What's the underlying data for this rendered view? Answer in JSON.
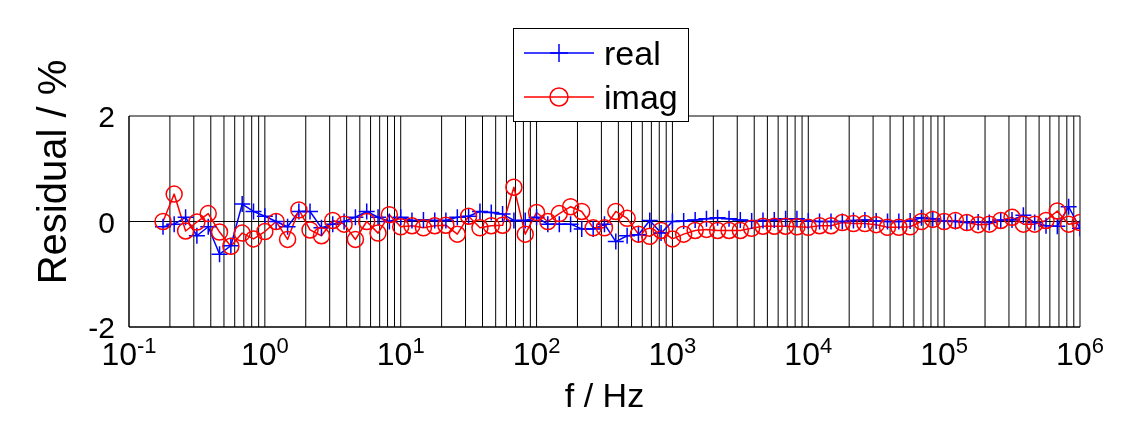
{
  "chart_data": {
    "type": "line",
    "xlabel": "f / Hz",
    "ylabel": "Residual / %",
    "x": [
      0.178,
      0.215,
      0.261,
      0.316,
      0.383,
      0.464,
      0.562,
      0.681,
      0.825,
      1,
      1.21,
      1.47,
      1.78,
      2.15,
      2.61,
      3.16,
      3.83,
      4.64,
      5.62,
      6.81,
      8.25,
      10,
      12.1,
      14.7,
      17.8,
      21.5,
      26.1,
      31.6,
      38.3,
      46.4,
      56.2,
      68.1,
      82.5,
      100,
      121,
      147,
      178,
      215,
      261,
      316,
      383,
      464,
      562,
      681,
      825,
      1000,
      1210,
      1470,
      1780,
      2150,
      2610,
      3160,
      3830,
      4640,
      5620,
      6810,
      8250,
      10000,
      12100,
      14700,
      17800,
      21500,
      26100,
      31600,
      38300,
      46400,
      56200,
      68100,
      82500,
      100000,
      121000,
      147000,
      178000,
      215000,
      261000,
      316000,
      383000,
      464000,
      562000,
      681000,
      825000,
      1000000
    ],
    "series": [
      {
        "name": "real",
        "color": "#0000ff",
        "marker": "cross",
        "values": [
          -0.1,
          -0.05,
          0.08,
          -0.27,
          -0.1,
          -0.62,
          -0.46,
          0.33,
          0.19,
          0.1,
          0,
          -0.1,
          0.19,
          0.19,
          -0.12,
          -0.05,
          0,
          0.08,
          0.19,
          0.08,
          0,
          0.08,
          0.02,
          0.03,
          0.02,
          0.02,
          0.08,
          0.1,
          0.19,
          0.17,
          0.14,
          0.02,
          0.02,
          0.08,
          -0.05,
          -0.05,
          -0.05,
          -0.14,
          -0.14,
          -0.05,
          -0.38,
          -0.27,
          -0.25,
          0.02,
          -0.22,
          0,
          0.01,
          0.03,
          0.05,
          0.07,
          0.05,
          0.03,
          0.01,
          0.02,
          0.03,
          0.05,
          0.05,
          0.01,
          0,
          0,
          0,
          0.02,
          0.03,
          0.01,
          0,
          0,
          0.01,
          0.07,
          0.05,
          0.01,
          0,
          -0.02,
          -0.01,
          -0.02,
          0.03,
          0.03,
          0.12,
          -0.02,
          -0.08,
          -0.09,
          0.28,
          -0.13
        ]
      },
      {
        "name": "imag",
        "color": "#ff0000",
        "marker": "circle",
        "values": [
          0,
          0.52,
          -0.18,
          -0.01,
          0.15,
          -0.2,
          -0.47,
          -0.22,
          -0.33,
          -0.19,
          0,
          -0.34,
          0.22,
          -0.16,
          -0.27,
          0.02,
          -0.05,
          -0.34,
          0,
          -0.22,
          0.13,
          -0.1,
          -0.08,
          -0.12,
          -0.08,
          -0.07,
          -0.24,
          0.1,
          -0.12,
          -0.08,
          -0.07,
          0.65,
          -0.24,
          0.17,
          0,
          0.15,
          0.28,
          0.19,
          -0.12,
          -0.12,
          0.19,
          0.06,
          -0.24,
          -0.28,
          -0.17,
          -0.33,
          -0.24,
          -0.17,
          -0.15,
          -0.17,
          -0.17,
          -0.17,
          -0.13,
          -0.09,
          -0.09,
          -0.09,
          -0.1,
          -0.11,
          -0.08,
          -0.08,
          -0.02,
          -0.04,
          -0.04,
          -0.06,
          -0.11,
          -0.11,
          -0.1,
          0,
          0.04,
          0,
          0.02,
          -0.02,
          -0.06,
          -0.05,
          0.02,
          0.08,
          -0.05,
          -0.05,
          0.02,
          0.2,
          -0.05,
          -0.02
        ]
      }
    ],
    "log": "x",
    "xlim": [
      0.1,
      1000000
    ],
    "xticks": [
      {
        "value": 0.1,
        "label": "10$^{-1}$"
      },
      {
        "value": 0.2,
        "label": null
      },
      {
        "value": 0.3,
        "label": null
      },
      {
        "value": 0.4,
        "label": null
      },
      {
        "value": 0.5,
        "label": null
      },
      {
        "value": 0.6,
        "label": null
      },
      {
        "value": 0.7,
        "label": null
      },
      {
        "value": 0.8,
        "label": null
      },
      {
        "value": 0.9,
        "label": null
      },
      {
        "value": 1,
        "label": "10$^{0}$"
      },
      {
        "value": 2,
        "label": null
      },
      {
        "value": 3,
        "label": null
      },
      {
        "value": 4,
        "label": null
      },
      {
        "value": 5,
        "label": null
      },
      {
        "value": 6,
        "label": null
      },
      {
        "value": 7,
        "label": null
      },
      {
        "value": 8,
        "label": null
      },
      {
        "value": 9,
        "label": null
      },
      {
        "value": 10,
        "label": "10$^{1}$"
      },
      {
        "value": 20,
        "label": null
      },
      {
        "value": 30,
        "label": null
      },
      {
        "value": 40,
        "label": null
      },
      {
        "value": 50,
        "label": null
      },
      {
        "value": 60,
        "label": null
      },
      {
        "value": 70,
        "label": null
      },
      {
        "value": 80,
        "label": null
      },
      {
        "value": 90,
        "label": null
      },
      {
        "value": 100,
        "label": "10$^{2}$"
      },
      {
        "value": 200,
        "label": null
      },
      {
        "value": 300,
        "label": null
      },
      {
        "value": 400,
        "label": null
      },
      {
        "value": 500,
        "label": null
      },
      {
        "value": 600,
        "label": null
      },
      {
        "value": 700,
        "label": null
      },
      {
        "value": 800,
        "label": null
      },
      {
        "value": 900,
        "label": null
      },
      {
        "value": 1000,
        "label": "10$^{3}$"
      },
      {
        "value": 2000,
        "label": null
      },
      {
        "value": 3000,
        "label": null
      },
      {
        "value": 4000,
        "label": null
      },
      {
        "value": 5000,
        "label": null
      },
      {
        "value": 6000,
        "label": null
      },
      {
        "value": 7000,
        "label": null
      },
      {
        "value": 8000,
        "label": null
      },
      {
        "value": 9000,
        "label": null
      },
      {
        "value": 10000,
        "label": "10$^{4}$"
      },
      {
        "value": 20000,
        "label": null
      },
      {
        "value": 30000,
        "label": null
      },
      {
        "value": 40000,
        "label": null
      },
      {
        "value": 50000,
        "label": null
      },
      {
        "value": 60000,
        "label": null
      },
      {
        "value": 70000,
        "label": null
      },
      {
        "value": 80000,
        "label": null
      },
      {
        "value": 90000,
        "label": null
      },
      {
        "value": 100000,
        "label": "10$^{5}$"
      },
      {
        "value": 200000,
        "label": null
      },
      {
        "value": 300000,
        "label": null
      },
      {
        "value": 400000,
        "label": null
      },
      {
        "value": 500000,
        "label": null
      },
      {
        "value": 600000,
        "label": null
      },
      {
        "value": 700000,
        "label": null
      },
      {
        "value": 800000,
        "label": null
      },
      {
        "value": 900000,
        "label": null
      },
      {
        "value": 1000000,
        "label": "10$^{6}$"
      }
    ],
    "ylim": [
      -2,
      2
    ],
    "yticks": [
      -2,
      0,
      2
    ],
    "grid": true,
    "legend": "top",
    "line_style": "solid"
  }
}
